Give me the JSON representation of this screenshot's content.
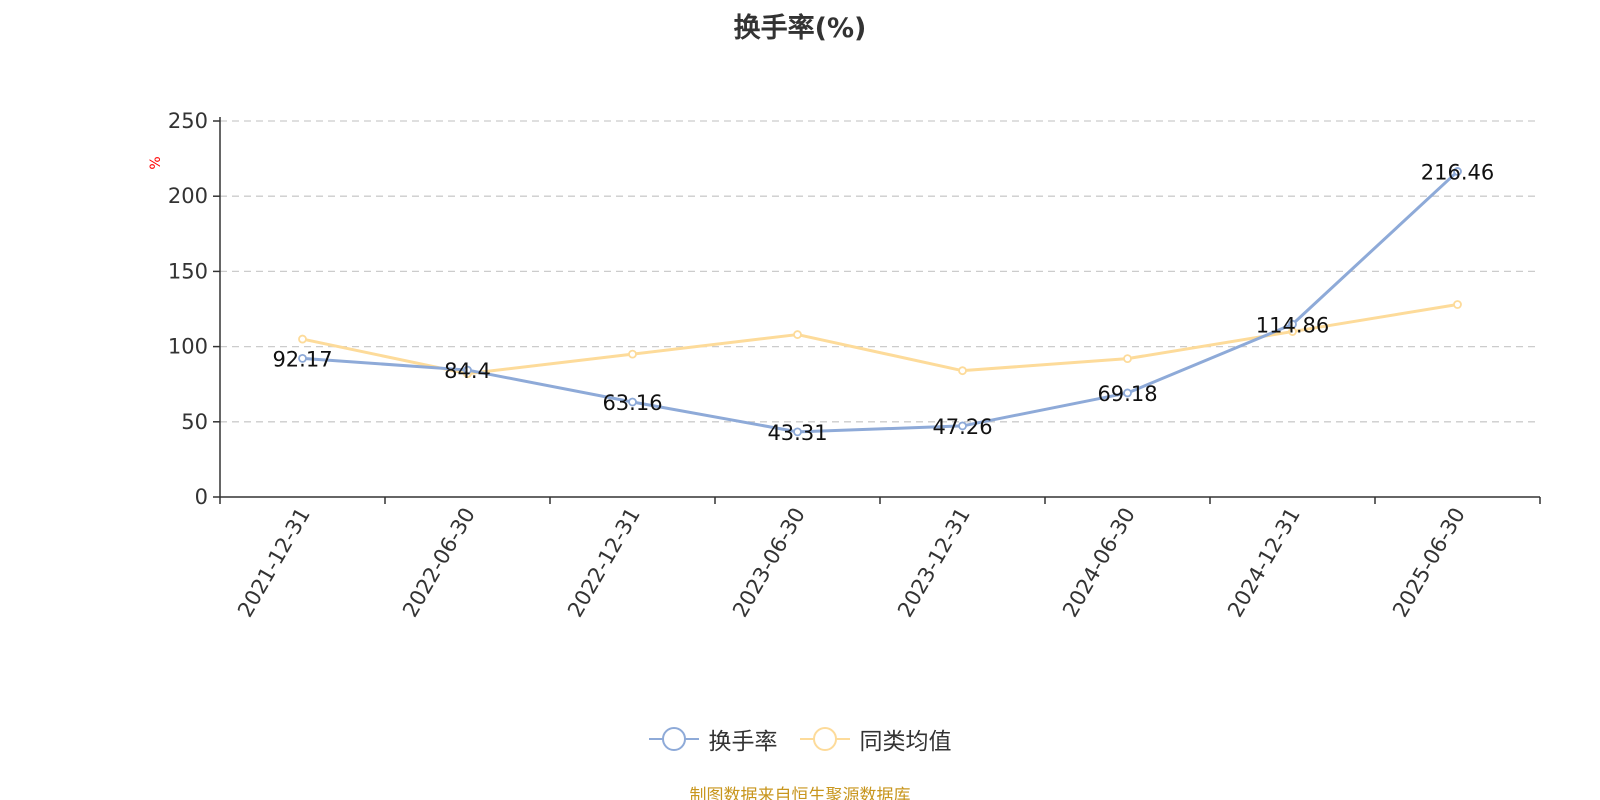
{
  "chart_data": {
    "type": "line",
    "title": "换手率(%)",
    "ylabel": "%",
    "xlabel": "",
    "categories": [
      "2021-12-31",
      "2022-06-30",
      "2022-12-31",
      "2023-06-30",
      "2023-12-31",
      "2024-06-30",
      "2024-12-31",
      "2025-06-30"
    ],
    "ylim": [
      0,
      250
    ],
    "yticks": [
      0,
      50,
      100,
      150,
      200,
      250
    ],
    "grid": true,
    "legend_position": "bottom-center",
    "series": [
      {
        "name": "换手率",
        "color": "#8eaad8",
        "values": [
          92.17,
          84.4,
          63.16,
          43.31,
          47.26,
          69.18,
          114.86,
          216.46
        ],
        "data_labels": [
          "92.17",
          "84.4",
          "63.16",
          "43.31",
          "47.26",
          "69.18",
          "114.86",
          "216.46"
        ]
      },
      {
        "name": "同类均值",
        "color": "#fddb9a",
        "values": [
          105,
          82,
          95,
          108,
          84,
          92,
          110,
          128
        ]
      }
    ]
  },
  "colors": {
    "axis": "#333333",
    "grid": "#cccccc",
    "unit_label": "#ff0000",
    "source_note": "#c8961e"
  },
  "source_note": "制图数据来自恒生聚源数据库"
}
